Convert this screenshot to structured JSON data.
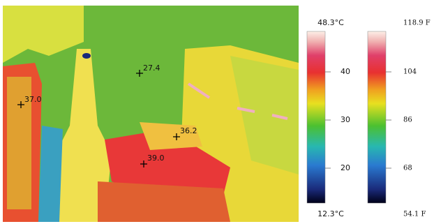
{
  "measurements": [
    {
      "label": "27.4"
    },
    {
      "label": "37.0"
    },
    {
      "label": "36.2"
    },
    {
      "label": "39.0"
    }
  ],
  "celsius_scale": {
    "max": "48.3°C",
    "min": "12.3°C",
    "ticks": [
      "40",
      "30",
      "20"
    ]
  },
  "fahrenheit_scale": {
    "max": "118.9 F",
    "min": "54.1 F",
    "ticks": [
      "104",
      "86",
      "68"
    ]
  }
}
